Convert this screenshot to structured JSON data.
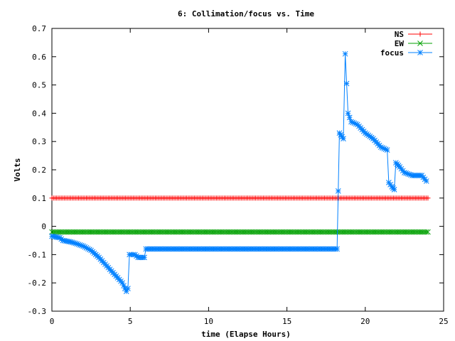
{
  "chart_data": {
    "type": "line",
    "title": "6: Collimation/focus vs. Time",
    "xlabel": "time (Elapse Hours)",
    "ylabel": "Volts",
    "xlim": [
      0,
      25
    ],
    "ylim": [
      -0.3,
      0.7
    ],
    "xticks": [
      0,
      5,
      10,
      15,
      20,
      25
    ],
    "yticks": [
      -0.3,
      -0.2,
      -0.1,
      0,
      0.1,
      0.2,
      0.3,
      0.4,
      0.5,
      0.6,
      0.7
    ],
    "xtick_labels": [
      "0",
      "5",
      "10",
      "15",
      "20",
      "25"
    ],
    "ytick_labels": [
      "-0.3",
      "-0.2",
      "-0.1",
      "0",
      "0.1",
      "0.2",
      "0.3",
      "0.4",
      "0.5",
      "0.6",
      "0.7"
    ],
    "grid": false,
    "legend_position": "top-right",
    "series": [
      {
        "name": "NS",
        "color": "#ff0000",
        "marker": "plus",
        "points": [
          [
            0,
            0.1
          ],
          [
            24,
            0.1
          ]
        ]
      },
      {
        "name": "EW",
        "color": "#00a000",
        "marker": "cross",
        "points": [
          [
            0,
            -0.02
          ],
          [
            24,
            -0.02
          ]
        ]
      },
      {
        "name": "focus",
        "color": "#0080ff",
        "marker": "star",
        "points": [
          [
            0,
            -0.035
          ],
          [
            0.5,
            -0.04
          ],
          [
            0.7,
            -0.05
          ],
          [
            1.2,
            -0.055
          ],
          [
            1.5,
            -0.06
          ],
          [
            2.0,
            -0.07
          ],
          [
            2.5,
            -0.085
          ],
          [
            3.0,
            -0.11
          ],
          [
            3.5,
            -0.14
          ],
          [
            4.0,
            -0.17
          ],
          [
            4.5,
            -0.2
          ],
          [
            4.75,
            -0.23
          ],
          [
            4.85,
            -0.22
          ],
          [
            4.95,
            -0.1
          ],
          [
            5.3,
            -0.1
          ],
          [
            5.5,
            -0.11
          ],
          [
            5.9,
            -0.11
          ],
          [
            6.0,
            -0.08
          ],
          [
            10,
            -0.08
          ],
          [
            15,
            -0.08
          ],
          [
            18.2,
            -0.08
          ],
          [
            18.35,
            0.33
          ],
          [
            18.6,
            0.31
          ],
          [
            18.72,
            0.61
          ],
          [
            18.9,
            0.4
          ],
          [
            19.1,
            0.37
          ],
          [
            19.5,
            0.36
          ],
          [
            20.0,
            0.33
          ],
          [
            20.5,
            0.31
          ],
          [
            21.0,
            0.28
          ],
          [
            21.4,
            0.27
          ],
          [
            21.5,
            0.155
          ],
          [
            21.7,
            0.14
          ],
          [
            21.85,
            0.13
          ],
          [
            21.95,
            0.225
          ],
          [
            22.2,
            0.21
          ],
          [
            22.5,
            0.19
          ],
          [
            23.0,
            0.18
          ],
          [
            23.6,
            0.18
          ],
          [
            23.9,
            0.16
          ]
        ]
      }
    ]
  }
}
